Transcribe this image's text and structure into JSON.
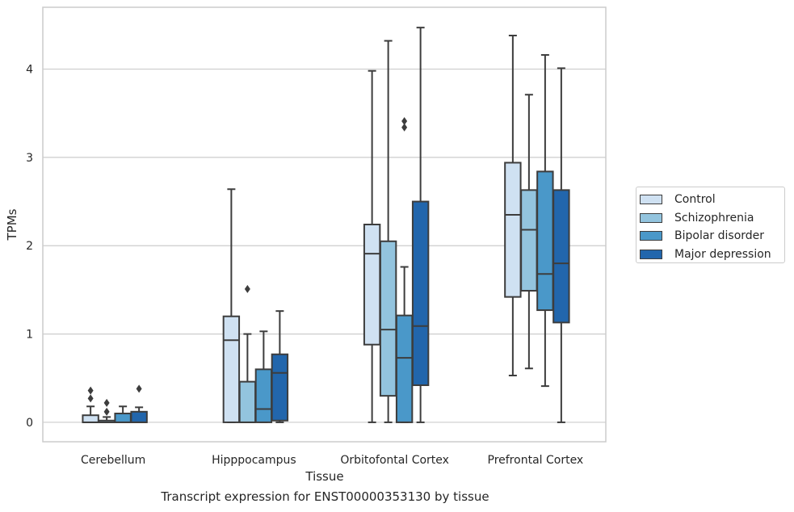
{
  "chart_data": {
    "type": "box",
    "caption": "Transcript expression for ENST00000353130 by tissue",
    "xlabel": "Tissue",
    "ylabel": "TPMs",
    "ylim": [
      -0.22,
      4.7
    ],
    "yticks": [
      0,
      1,
      2,
      3,
      4
    ],
    "grid": "horizontal",
    "legend_position": "right",
    "categories": [
      "Cerebellum",
      "Hipppocampus",
      "Orbitofontal Cortex",
      "Prefrontal Cortex"
    ],
    "series": [
      {
        "name": "Control",
        "color": "#cfe1f2",
        "boxes": [
          {
            "low": 0.0,
            "q1": 0.0,
            "median": 0.0,
            "q3": 0.08,
            "high": 0.18,
            "outliers": [
              0.27,
              0.36
            ]
          },
          {
            "low": 0.0,
            "q1": 0.0,
            "median": 0.93,
            "q3": 1.2,
            "high": 2.64,
            "outliers": []
          },
          {
            "low": 0.0,
            "q1": 0.88,
            "median": 1.91,
            "q3": 2.24,
            "high": 3.98,
            "outliers": []
          },
          {
            "low": 0.53,
            "q1": 1.42,
            "median": 2.35,
            "q3": 2.94,
            "high": 4.38,
            "outliers": []
          }
        ]
      },
      {
        "name": "Schizophrenia",
        "color": "#93c4de",
        "boxes": [
          {
            "low": 0.0,
            "q1": 0.0,
            "median": 0.0,
            "q3": 0.02,
            "high": 0.06,
            "outliers": [
              0.12,
              0.22
            ]
          },
          {
            "low": 0.0,
            "q1": 0.0,
            "median": 0.0,
            "q3": 0.46,
            "high": 1.0,
            "outliers": [
              1.51
            ]
          },
          {
            "low": 0.0,
            "q1": 0.3,
            "median": 1.05,
            "q3": 2.05,
            "high": 4.32,
            "outliers": []
          },
          {
            "low": 0.61,
            "q1": 1.49,
            "median": 2.18,
            "q3": 2.63,
            "high": 3.71,
            "outliers": []
          }
        ]
      },
      {
        "name": "Bipolar disorder",
        "color": "#4a98c9",
        "boxes": [
          {
            "low": 0.0,
            "q1": 0.0,
            "median": 0.0,
            "q3": 0.1,
            "high": 0.18,
            "outliers": []
          },
          {
            "low": 0.0,
            "q1": 0.0,
            "median": 0.15,
            "q3": 0.6,
            "high": 1.03,
            "outliers": []
          },
          {
            "low": 0.0,
            "q1": 0.0,
            "median": 0.73,
            "q3": 1.21,
            "high": 1.76,
            "outliers": [
              3.34,
              3.41
            ]
          },
          {
            "low": 0.41,
            "q1": 1.27,
            "median": 1.68,
            "q3": 2.84,
            "high": 4.16,
            "outliers": []
          }
        ]
      },
      {
        "name": "Major depression",
        "color": "#2266ac",
        "boxes": [
          {
            "low": 0.0,
            "q1": 0.0,
            "median": 0.0,
            "q3": 0.12,
            "high": 0.17,
            "outliers": [
              0.38
            ]
          },
          {
            "low": 0.0,
            "q1": 0.02,
            "median": 0.56,
            "q3": 0.77,
            "high": 1.26,
            "outliers": []
          },
          {
            "low": 0.0,
            "q1": 0.42,
            "median": 1.09,
            "q3": 2.5,
            "high": 4.47,
            "outliers": []
          },
          {
            "low": 0.0,
            "q1": 1.13,
            "median": 1.8,
            "q3": 2.63,
            "high": 4.01,
            "outliers": []
          }
        ]
      }
    ]
  }
}
